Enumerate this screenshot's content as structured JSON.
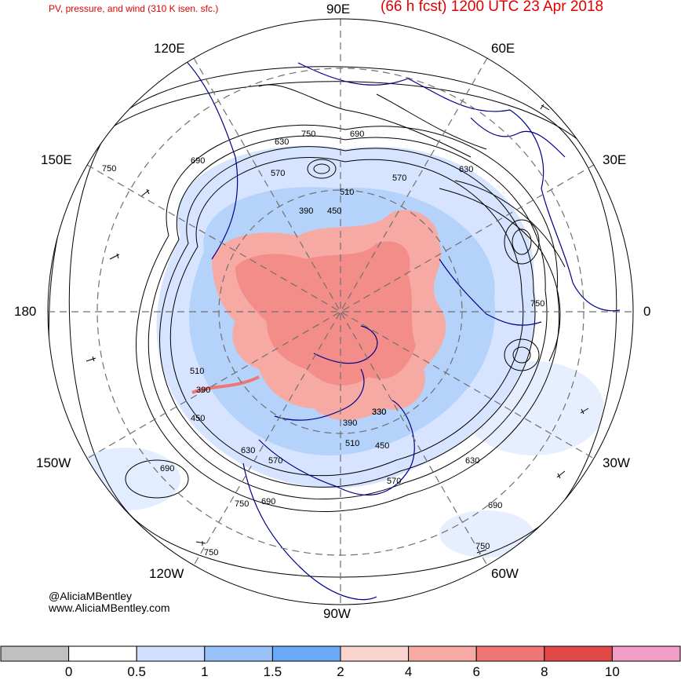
{
  "header": {
    "title_left": "PV, pressure, and wind (310 K isen. sfc.)",
    "title_right": "(66 h fcst) 1200 UTC 23 Apr 2018"
  },
  "longitude_labels": {
    "n": "90E",
    "ne": "60E",
    "nw": "120E",
    "ene": "30E",
    "wnw": "150E",
    "e": "0",
    "w": "180",
    "ese": "30W",
    "wsw": "150W",
    "se": "60W",
    "sw": "120W",
    "s": "90W"
  },
  "credit": {
    "handle": "@AliciaMBentley",
    "website": "www.AliciaMBentley.com"
  },
  "pressure_labels": [
    "750",
    "690",
    "630",
    "570",
    "510",
    "450",
    "390",
    "330",
    "750",
    "630",
    "570",
    "510",
    "450",
    "390",
    "690",
    "750",
    "630",
    "690",
    "750",
    "750",
    "570",
    "510",
    "450",
    "390",
    "330",
    "570",
    "630",
    "690",
    "750",
    "690"
  ],
  "colorbar": {
    "ticks": [
      "0",
      "0.5",
      "1",
      "1.5",
      "2",
      "4",
      "6",
      "8",
      "10"
    ],
    "colors": [
      "#c0c0c0",
      "#ffffff",
      "#cfe0ff",
      "#97c1f7",
      "#69a9f5",
      "#f9d4cf",
      "#f7aaa4",
      "#f07575",
      "#e04848",
      "#f29dc7"
    ]
  },
  "style": {
    "title_color": "#e00000",
    "map_line_color": "#00008b"
  }
}
